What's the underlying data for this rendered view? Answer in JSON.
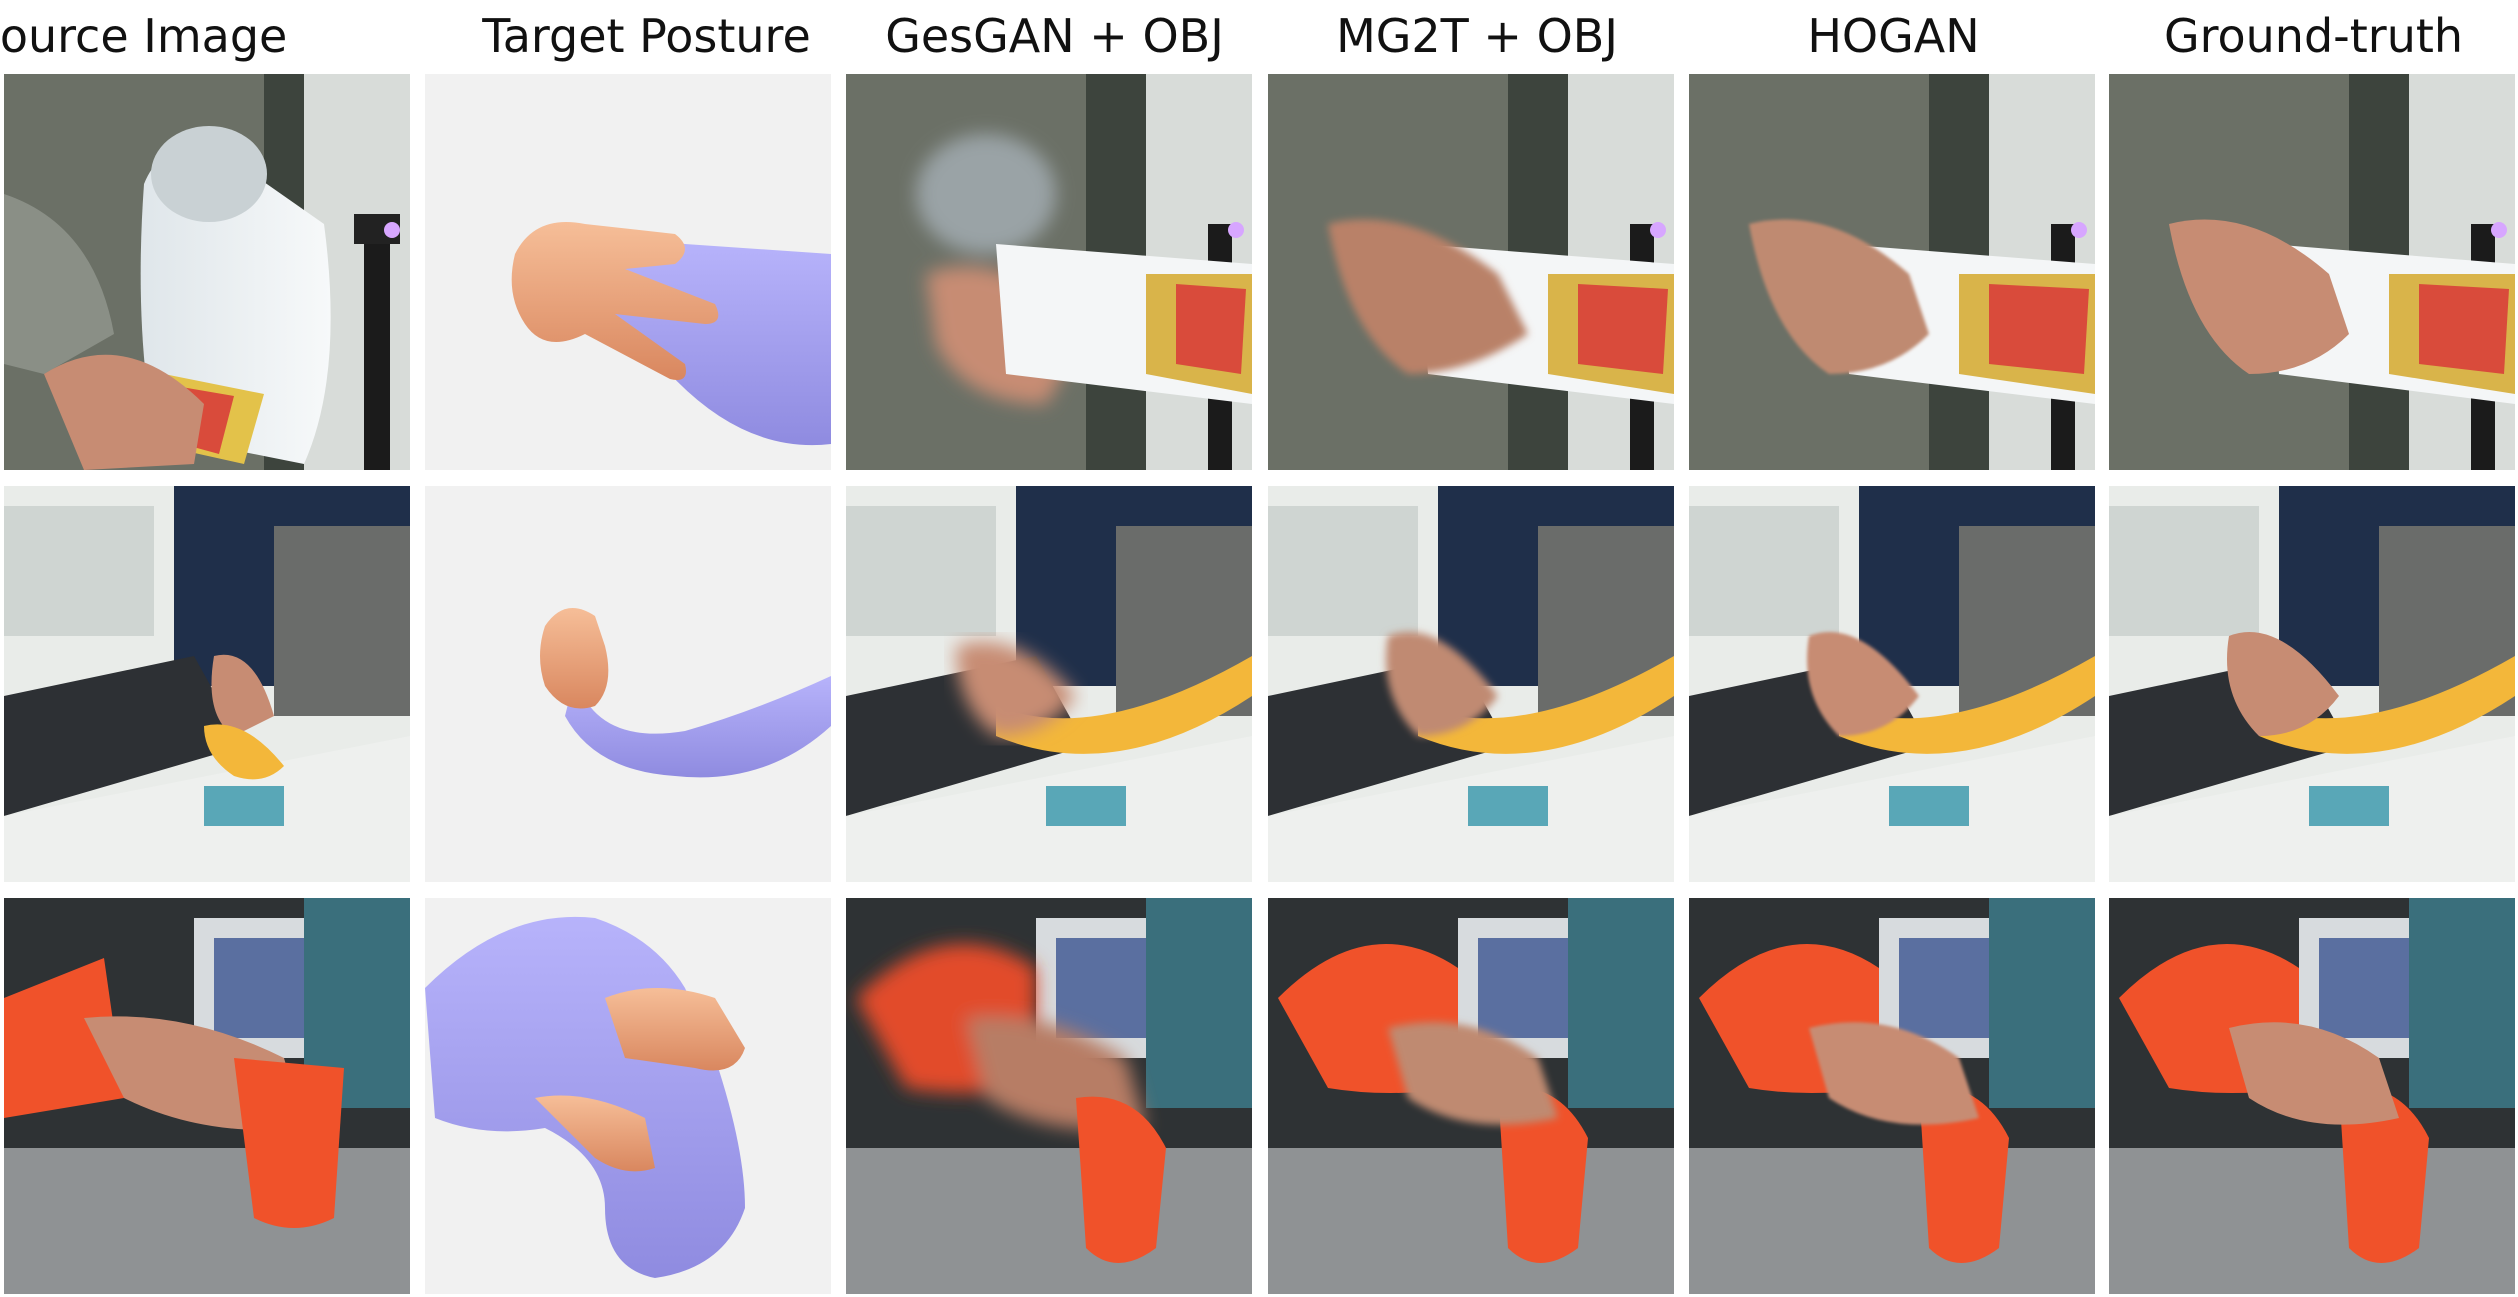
{
  "columns": [
    {
      "label": "Source Image"
    },
    {
      "label": "Target Posture"
    },
    {
      "label": "GesGAN + OBJ"
    },
    {
      "label": "MG2T + OBJ"
    },
    {
      "label": "HOGAN"
    },
    {
      "label": "Ground-truth"
    }
  ],
  "rows": [
    {
      "object": "bottle"
    },
    {
      "object": "banana"
    },
    {
      "object": "drill"
    }
  ],
  "colors": {
    "background": "#ffffff",
    "target_bg": "#f1f1f1",
    "object_render": "#a8a4f2",
    "hand_render": "#f2b088",
    "skin": "#c78c73",
    "banana": "#f3b73a",
    "drill": "#f0522a",
    "sweater": "#6b7066",
    "navy": "#1f2f4a"
  }
}
